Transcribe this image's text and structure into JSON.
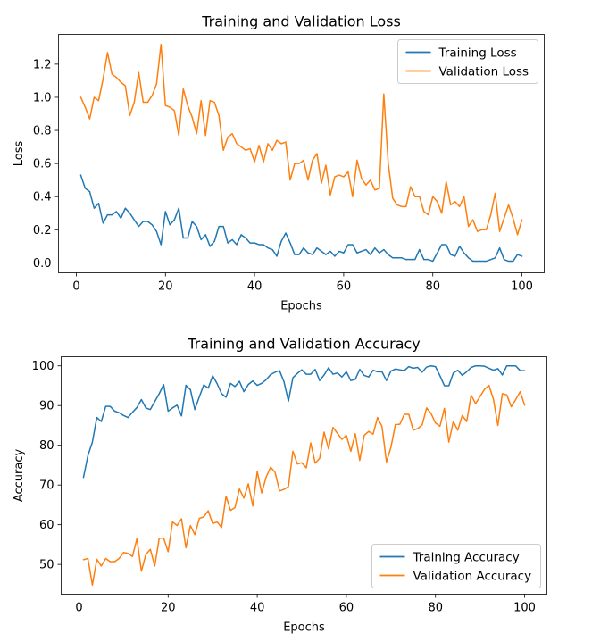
{
  "chart_data": [
    {
      "type": "line",
      "title": "Training and Validation Loss",
      "xlabel": "Epochs",
      "ylabel": "Loss",
      "xlim": [
        -4,
        105
      ],
      "ylim": [
        -0.06,
        1.38
      ],
      "xticks": [
        0,
        20,
        40,
        60,
        80,
        100
      ],
      "yticks": [
        0.0,
        0.2,
        0.4,
        0.6,
        0.8,
        1.0,
        1.2
      ],
      "ytick_decimals": 1,
      "grid": false,
      "legend_position": "top-right",
      "x": [
        1,
        2,
        3,
        4,
        5,
        6,
        7,
        8,
        9,
        10,
        11,
        12,
        13,
        14,
        15,
        16,
        17,
        18,
        19,
        20,
        21,
        22,
        23,
        24,
        25,
        26,
        27,
        28,
        29,
        30,
        31,
        32,
        33,
        34,
        35,
        36,
        37,
        38,
        39,
        40,
        41,
        42,
        43,
        44,
        45,
        46,
        47,
        48,
        49,
        50,
        51,
        52,
        53,
        54,
        55,
        56,
        57,
        58,
        59,
        60,
        61,
        62,
        63,
        64,
        65,
        66,
        67,
        68,
        69,
        70,
        71,
        72,
        73,
        74,
        75,
        76,
        77,
        78,
        79,
        80,
        81,
        82,
        83,
        84,
        85,
        86,
        87,
        88,
        89,
        90,
        91,
        92,
        93,
        94,
        95,
        96,
        97,
        98,
        99,
        100
      ],
      "series": [
        {
          "name": "Training Loss",
          "color": "#1f77b4",
          "values": [
            0.53,
            0.45,
            0.43,
            0.33,
            0.36,
            0.24,
            0.29,
            0.29,
            0.31,
            0.27,
            0.33,
            0.3,
            0.26,
            0.22,
            0.25,
            0.25,
            0.23,
            0.19,
            0.11,
            0.31,
            0.23,
            0.26,
            0.33,
            0.15,
            0.15,
            0.25,
            0.22,
            0.14,
            0.17,
            0.1,
            0.13,
            0.22,
            0.22,
            0.12,
            0.14,
            0.11,
            0.17,
            0.15,
            0.12,
            0.12,
            0.11,
            0.11,
            0.09,
            0.08,
            0.04,
            0.13,
            0.18,
            0.12,
            0.05,
            0.05,
            0.09,
            0.06,
            0.05,
            0.09,
            0.07,
            0.05,
            0.07,
            0.04,
            0.07,
            0.06,
            0.11,
            0.11,
            0.06,
            0.07,
            0.08,
            0.05,
            0.09,
            0.06,
            0.08,
            0.05,
            0.03,
            0.03,
            0.03,
            0.02,
            0.02,
            0.02,
            0.08,
            0.02,
            0.02,
            0.01,
            0.06,
            0.11,
            0.11,
            0.05,
            0.04,
            0.1,
            0.06,
            0.03,
            0.01,
            0.01,
            0.01,
            0.01,
            0.02,
            0.03,
            0.09,
            0.02,
            0.01,
            0.01,
            0.05,
            0.04
          ]
        },
        {
          "name": "Validation Loss",
          "color": "#ff7f0e",
          "values": [
            1.0,
            0.94,
            0.87,
            1.0,
            0.98,
            1.11,
            1.27,
            1.14,
            1.12,
            1.09,
            1.07,
            0.89,
            0.97,
            1.15,
            0.97,
            0.97,
            1.01,
            1.08,
            1.32,
            0.95,
            0.94,
            0.92,
            0.77,
            1.05,
            0.95,
            0.88,
            0.78,
            0.98,
            0.77,
            0.98,
            0.97,
            0.89,
            0.68,
            0.76,
            0.78,
            0.72,
            0.7,
            0.68,
            0.69,
            0.61,
            0.71,
            0.61,
            0.72,
            0.68,
            0.74,
            0.72,
            0.73,
            0.5,
            0.6,
            0.6,
            0.62,
            0.5,
            0.62,
            0.66,
            0.48,
            0.59,
            0.41,
            0.52,
            0.53,
            0.52,
            0.55,
            0.4,
            0.62,
            0.51,
            0.47,
            0.5,
            0.44,
            0.45,
            1.02,
            0.6,
            0.39,
            0.35,
            0.34,
            0.34,
            0.46,
            0.4,
            0.4,
            0.31,
            0.29,
            0.4,
            0.37,
            0.3,
            0.49,
            0.35,
            0.37,
            0.34,
            0.4,
            0.22,
            0.26,
            0.19,
            0.2,
            0.2,
            0.29,
            0.42,
            0.19,
            0.27,
            0.35,
            0.27,
            0.17,
            0.26
          ]
        }
      ]
    },
    {
      "type": "line",
      "title": "Training and Validation Accuracy",
      "xlabel": "Epochs",
      "ylabel": "Accuracy",
      "xlim": [
        -4,
        105
      ],
      "ylim": [
        42.5,
        102.3
      ],
      "xticks": [
        0,
        20,
        40,
        60,
        80,
        100
      ],
      "yticks": [
        50,
        60,
        70,
        80,
        90,
        100
      ],
      "ytick_decimals": 0,
      "grid": false,
      "legend_position": "bottom-right",
      "x": [
        1,
        2,
        3,
        4,
        5,
        6,
        7,
        8,
        9,
        10,
        11,
        12,
        13,
        14,
        15,
        16,
        17,
        18,
        19,
        20,
        21,
        22,
        23,
        24,
        25,
        26,
        27,
        28,
        29,
        30,
        31,
        32,
        33,
        34,
        35,
        36,
        37,
        38,
        39,
        40,
        41,
        42,
        43,
        44,
        45,
        46,
        47,
        48,
        49,
        50,
        51,
        52,
        53,
        54,
        55,
        56,
        57,
        58,
        59,
        60,
        61,
        62,
        63,
        64,
        65,
        66,
        67,
        68,
        69,
        70,
        71,
        72,
        73,
        74,
        75,
        76,
        77,
        78,
        79,
        80,
        81,
        82,
        83,
        84,
        85,
        86,
        87,
        88,
        89,
        90,
        91,
        92,
        93,
        94,
        95,
        96,
        97,
        98,
        99,
        100
      ],
      "series": [
        {
          "name": "Training Accuracy",
          "color": "#1f77b4",
          "values": [
            71.9,
            77.4,
            80.8,
            87.0,
            86.0,
            89.8,
            89.8,
            88.6,
            88.2,
            87.5,
            87.0,
            88.3,
            89.5,
            91.5,
            89.4,
            89.0,
            91.0,
            93.0,
            95.3,
            88.6,
            89.4,
            90.1,
            87.4,
            95.1,
            94.0,
            89.0,
            92.2,
            95.2,
            94.4,
            97.5,
            95.5,
            93.0,
            92.1,
            95.6,
            94.8,
            96.1,
            93.5,
            95.3,
            96.2,
            95.1,
            95.6,
            96.5,
            97.8,
            98.4,
            98.8,
            96.0,
            91.1,
            97.0,
            98.1,
            99.0,
            97.9,
            97.9,
            99.1,
            96.3,
            97.7,
            99.5,
            97.9,
            98.2,
            97.2,
            98.5,
            96.3,
            96.6,
            99.1,
            97.6,
            97.2,
            98.9,
            98.5,
            98.5,
            96.3,
            98.7,
            99.2,
            99.0,
            98.8,
            99.8,
            99.4,
            99.6,
            98.4,
            99.7,
            100,
            99.8,
            97.5,
            95.0,
            95.0,
            98.2,
            98.9,
            97.6,
            98.5,
            99.6,
            100,
            100,
            99.9,
            99.4,
            98.9,
            99.3,
            97.7,
            100,
            100,
            100,
            98.8,
            98.8
          ]
        },
        {
          "name": "Validation Accuracy",
          "color": "#ff7f0e",
          "values": [
            51.2,
            51.5,
            44.8,
            51.3,
            49.6,
            51.5,
            50.7,
            50.7,
            51.5,
            53.0,
            52.8,
            52.0,
            56.5,
            48.3,
            52.5,
            53.8,
            49.6,
            56.6,
            56.6,
            53.2,
            60.7,
            59.8,
            61.5,
            54.2,
            59.8,
            57.5,
            61.6,
            62.0,
            63.5,
            60.3,
            60.7,
            59.3,
            67.2,
            63.6,
            64.3,
            69.0,
            66.7,
            70.3,
            64.7,
            73.4,
            68.0,
            72.0,
            74.5,
            73.2,
            68.5,
            68.9,
            69.6,
            78.5,
            75.3,
            75.6,
            74.3,
            80.6,
            75.5,
            76.7,
            83.3,
            79.1,
            84.5,
            83.0,
            81.5,
            82.5,
            78.5,
            82.9,
            76.2,
            82.5,
            83.5,
            82.8,
            87.0,
            84.7,
            75.8,
            79.5,
            85.2,
            85.3,
            87.8,
            87.8,
            83.8,
            84.2,
            85.1,
            89.4,
            88.0,
            85.6,
            84.8,
            89.3,
            80.8,
            86.0,
            83.8,
            87.5,
            86.0,
            92.6,
            90.5,
            92.3,
            94.1,
            95.1,
            91.6,
            85.0,
            93.0,
            92.7,
            89.7,
            91.5,
            93.5,
            90.1
          ]
        }
      ]
    }
  ]
}
